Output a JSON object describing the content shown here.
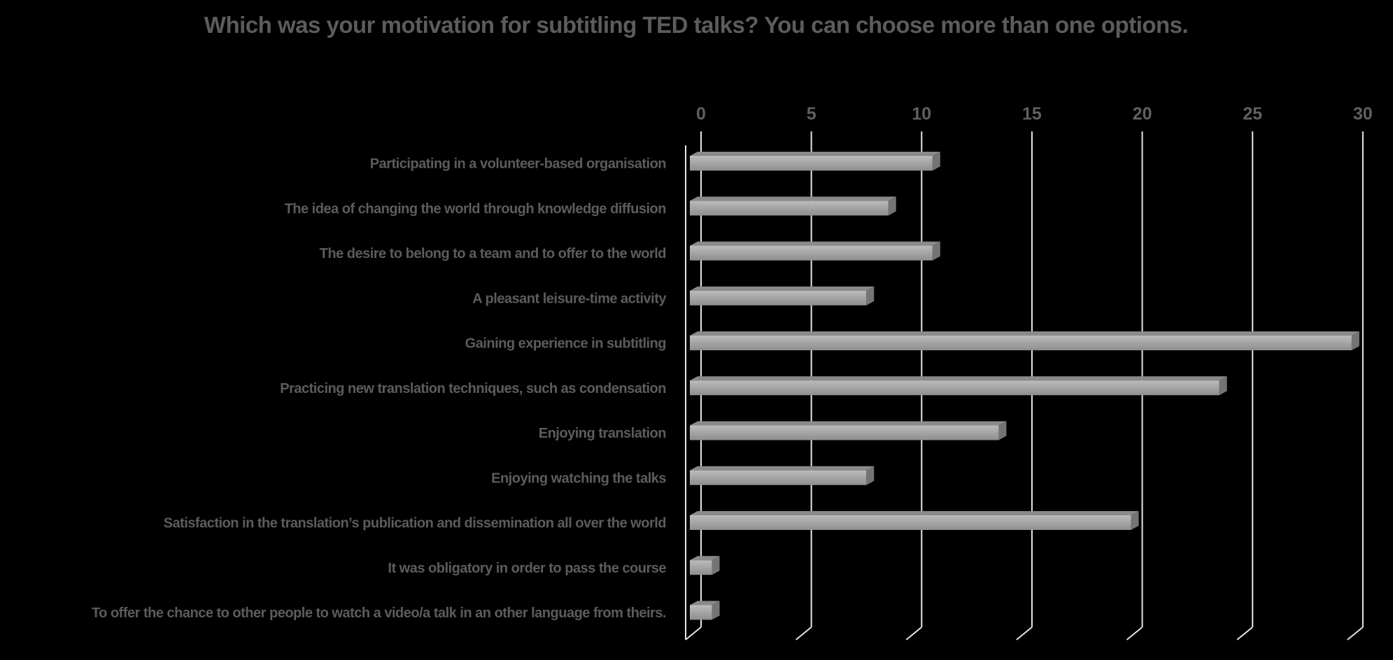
{
  "title": "Which was your motivation for subtitling TED talks? You can choose more than one options.",
  "chart_data": {
    "type": "bar",
    "orientation": "horizontal",
    "style": "3d",
    "title": "Which was your motivation for subtitling TED talks? You can choose more than one options.",
    "categories": [
      "Participating in a volunteer-based organisation",
      "The idea of changing the world through knowledge diffusion",
      "The desire to belong to a team and to offer to the world",
      "A pleasant leisure-time activity",
      "Gaining experience in subtitling",
      "Practicing new translation techniques, such as condensation",
      "Enjoying translation",
      "Enjoying watching the talks",
      "Satisfaction in the translation’s publication and dissemination  all over the world",
      "It was obligatory in order to pass the course",
      "To offer the chance to other people to watch a video/a talk in an other language from theirs."
    ],
    "values": [
      11,
      9,
      11,
      8,
      30,
      24,
      14,
      8,
      20,
      1,
      1
    ],
    "xlabel": "",
    "ylabel": "",
    "xlim": [
      0,
      30
    ],
    "xticks": [
      0,
      5,
      10,
      15,
      20,
      25,
      30
    ],
    "tick_labels_position": "top",
    "grid": true,
    "legend": "none",
    "colors": {
      "background": "#000000",
      "text": "#5c5c5c",
      "gridline": "#e6e6e6",
      "bar_front_light": "#bcbcbc",
      "bar_front_dark": "#8e8e8e",
      "bar_top_face": "#8a8a8a",
      "bar_side_face": "#747474"
    }
  }
}
